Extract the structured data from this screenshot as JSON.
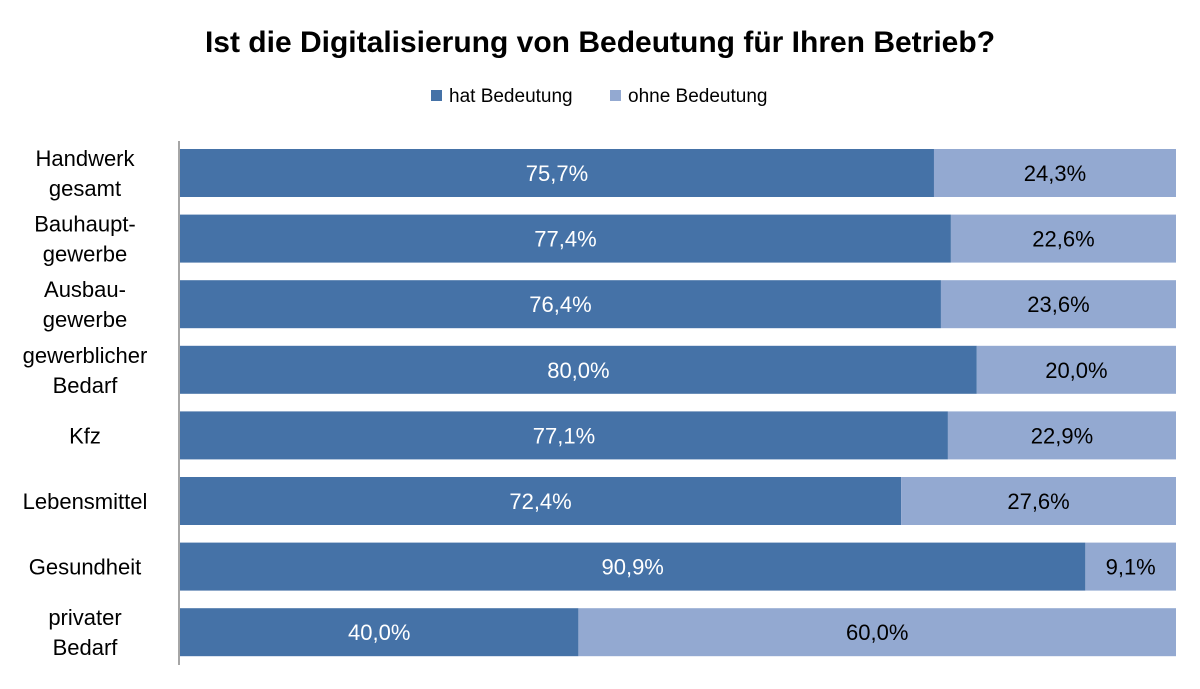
{
  "chart_data": {
    "type": "bar",
    "orientation": "horizontal",
    "stacked": "100%",
    "title": "Ist die Digitalisierung von Bedeutung für Ihren Betrieb?",
    "categories": [
      [
        "Handwerk",
        "gesamt"
      ],
      [
        "Bauhaupt-",
        "gewerbe"
      ],
      [
        "Ausbau-",
        "gewerbe"
      ],
      [
        "gewerblicher",
        "Bedarf"
      ],
      [
        "Kfz"
      ],
      [
        "Lebensmittel"
      ],
      [
        "Gesundheit"
      ],
      [
        "privater",
        "Bedarf"
      ]
    ],
    "series": [
      {
        "name": "hat Bedeutung",
        "color": "#4572A7",
        "values": [
          75.7,
          77.4,
          76.4,
          80.0,
          77.1,
          72.4,
          90.9,
          40.0
        ],
        "labels": [
          "75,7%",
          "77,4%",
          "76,4%",
          "80,0%",
          "77,1%",
          "72,4%",
          "90,9%",
          "40,0%"
        ],
        "label_color": "#ffffff"
      },
      {
        "name": "ohne Bedeutung",
        "color": "#93A9D1",
        "values": [
          24.3,
          22.6,
          23.6,
          20.0,
          22.9,
          27.6,
          9.1,
          60.0
        ],
        "labels": [
          "24,3%",
          "22,6%",
          "23,6%",
          "20,0%",
          "22,9%",
          "27,6%",
          "9,1%",
          "60,0%"
        ],
        "label_color": "#000000"
      }
    ],
    "xlim": [
      0,
      100
    ],
    "legend": "top-center",
    "grid": false
  }
}
